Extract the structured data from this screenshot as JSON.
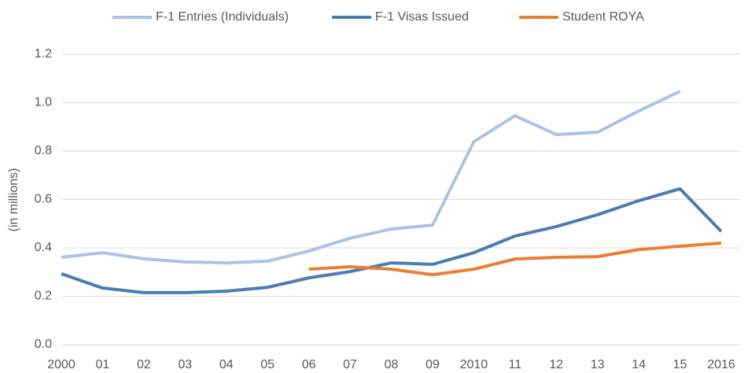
{
  "chart_data": {
    "type": "line",
    "y_label": "(in millions)",
    "categories": [
      "2000",
      "01",
      "02",
      "03",
      "04",
      "05",
      "06",
      "07",
      "08",
      "09",
      "2010",
      "11",
      "12",
      "13",
      "14",
      "15",
      "2016"
    ],
    "series": [
      {
        "name": "F-1 Entries (Individuals)",
        "color": "#a9c4e6",
        "values": [
          0.361,
          0.38,
          0.355,
          0.342,
          0.338,
          0.345,
          0.387,
          0.44,
          0.478,
          0.494,
          0.839,
          0.946,
          0.868,
          0.878,
          0.966,
          1.047,
          null
        ]
      },
      {
        "name": "F-1 Visas Issued",
        "color": "#4a7eb0",
        "values": [
          0.293,
          0.234,
          0.215,
          0.215,
          0.221,
          0.237,
          0.276,
          0.302,
          0.338,
          0.332,
          0.38,
          0.449,
          0.488,
          0.537,
          0.595,
          0.644,
          0.468
        ]
      },
      {
        "name": "Student ROYA",
        "color": "#ed7d31",
        "values": [
          null,
          null,
          null,
          null,
          null,
          null,
          0.312,
          0.322,
          0.312,
          0.289,
          0.312,
          0.354,
          0.361,
          0.364,
          0.393,
          0.407,
          0.42
        ]
      }
    ],
    "ylim": [
      0,
      1.2
    ],
    "yticks": [
      {
        "value": 0,
        "label": "0.0"
      },
      0.2,
      0.4,
      0.6,
      0.8,
      {
        "value": 1,
        "label": "1.0"
      },
      1.2
    ],
    "grid": true,
    "legend": "top"
  }
}
